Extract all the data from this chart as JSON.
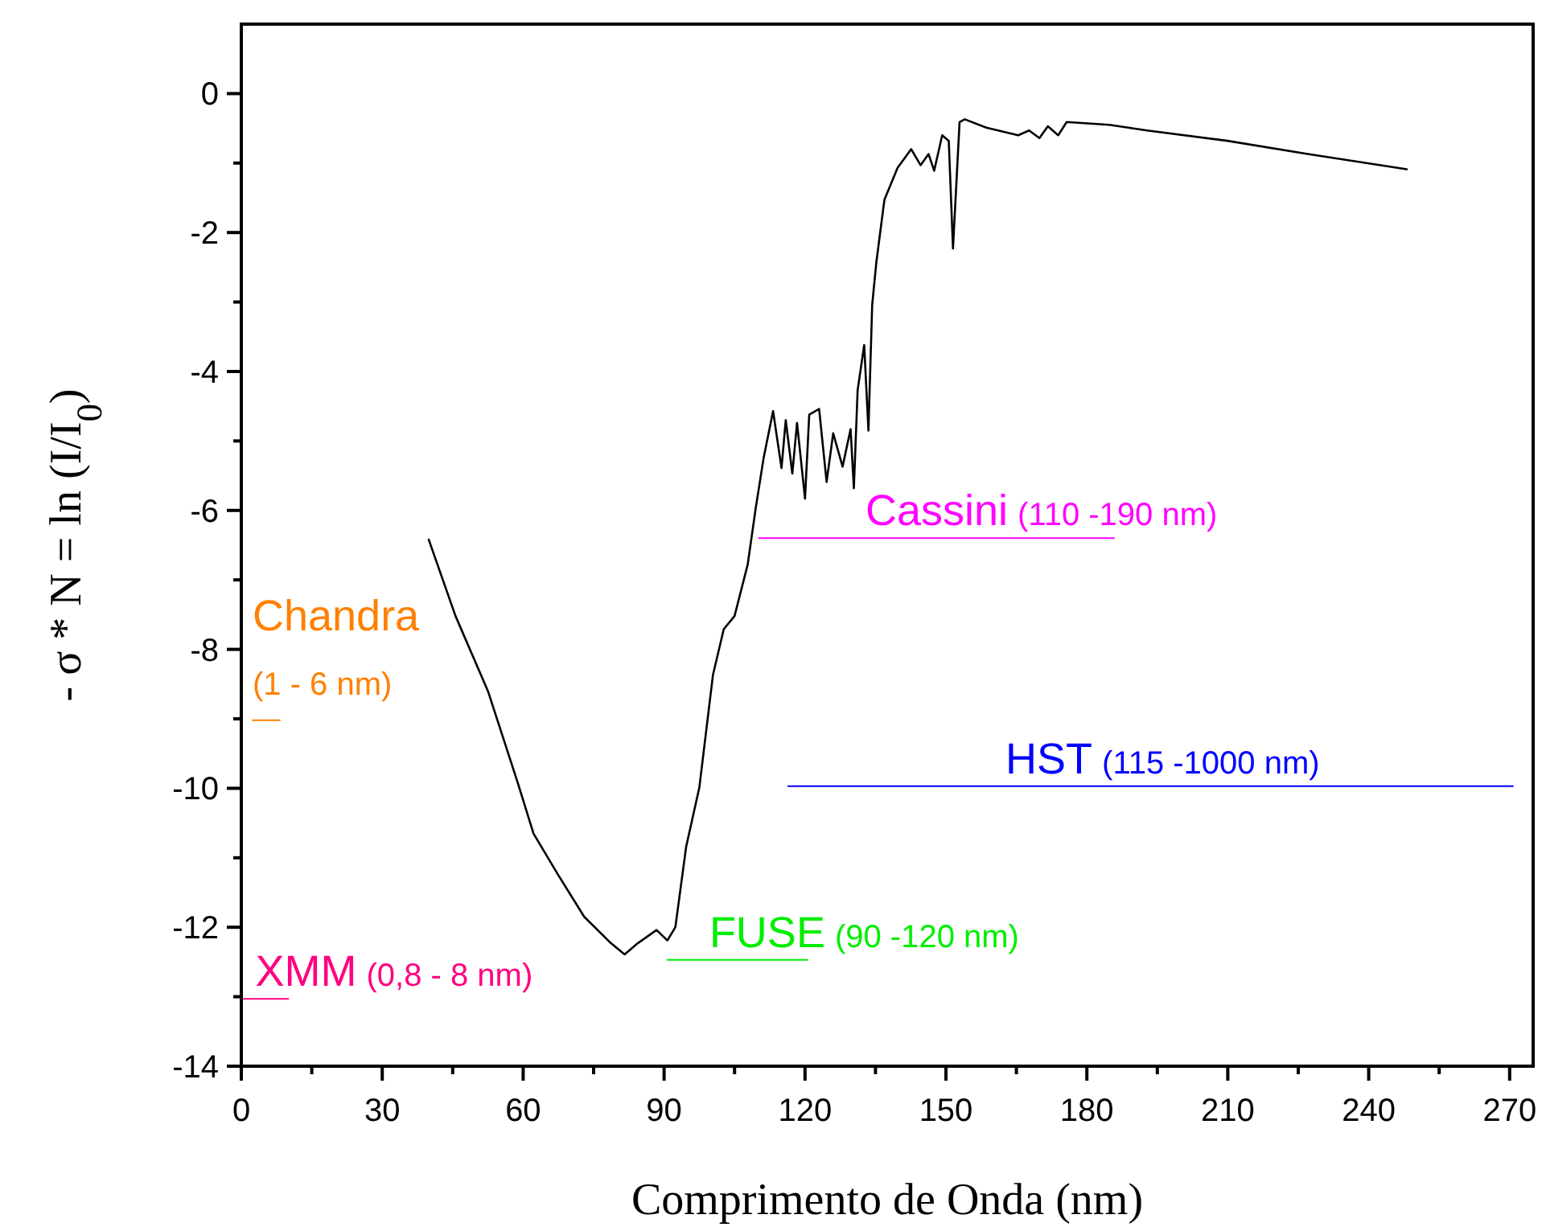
{
  "chart_data": {
    "type": "line",
    "xlabel": "Comprimento de Onda (nm)",
    "ylabel": "- σ * N = ln (I/I$_{0}$)",
    "xlim": [
      0,
      275
    ],
    "ylim": [
      -14,
      1
    ],
    "xticks": [
      0,
      {
        "value": 15,
        "label": null
      },
      30,
      {
        "value": 45,
        "label": null
      },
      60,
      {
        "value": 75,
        "label": null
      },
      90,
      {
        "value": 105,
        "label": null
      },
      120,
      {
        "value": 135,
        "label": null
      },
      150,
      {
        "value": 165,
        "label": null
      },
      180,
      {
        "value": 195,
        "label": null
      },
      210,
      {
        "value": 225,
        "label": null
      },
      240,
      {
        "value": 255,
        "label": null
      },
      270
    ],
    "yticks": [
      -14,
      {
        "value": -13,
        "label": null
      },
      -12,
      {
        "value": -11,
        "label": null
      },
      -10,
      {
        "value": -9,
        "label": null
      },
      -8,
      {
        "value": -7,
        "label": null
      },
      -6,
      {
        "value": -5,
        "label": null
      },
      -4,
      {
        "value": -3,
        "label": null
      },
      -2,
      {
        "value": -1,
        "label": null
      },
      0
    ],
    "grid": false,
    "legend": false,
    "marker": "none",
    "line_style": "solid",
    "series": [
      {
        "color": "#000000",
        "x": [
          39.9,
          45.6,
          52.5,
          58.8,
          62.2,
          67.3,
          73.0,
          78.7,
          81.6,
          84.4,
          88.4,
          90.7,
          92.4,
          94.7,
          97.5,
          100.4,
          102.7,
          105.0,
          107.8,
          109.5,
          111.2,
          113.2,
          115.0,
          115.9,
          117.3,
          118.3,
          120.0,
          120.9,
          123.0,
          124.6,
          126.0,
          128.0,
          129.7,
          130.4,
          131.2,
          132.6,
          133.5,
          134.3,
          135.2,
          136.9,
          139.7,
          142.6,
          144.6,
          146.3,
          147.5,
          149.2,
          150.6,
          151.5,
          152.9,
          154.0,
          158.6,
          165.4,
          167.7,
          169.9,
          171.7,
          173.9,
          175.7,
          184.8,
          192.8,
          209.9,
          227.0,
          248.1
        ],
        "values": [
          -6.42,
          -7.52,
          -8.6,
          -9.91,
          -10.65,
          -11.23,
          -11.85,
          -12.23,
          -12.39,
          -12.23,
          -12.04,
          -12.19,
          -12.0,
          -10.84,
          -9.99,
          -8.37,
          -7.71,
          -7.52,
          -6.78,
          -5.97,
          -5.24,
          -4.57,
          -5.39,
          -4.7,
          -5.47,
          -4.74,
          -5.83,
          -4.62,
          -4.54,
          -5.59,
          -4.89,
          -5.37,
          -4.83,
          -5.68,
          -4.27,
          -3.62,
          -4.85,
          -3.04,
          -2.42,
          -1.53,
          -1.07,
          -0.8,
          -1.03,
          -0.87,
          -1.11,
          -0.6,
          -0.68,
          -2.23,
          -0.41,
          -0.37,
          -0.49,
          -0.6,
          -0.53,
          -0.64,
          -0.47,
          -0.6,
          -0.41,
          -0.45,
          -0.53,
          -0.68,
          -0.87,
          -1.09
        ]
      },
      {
        "name": "Chandra",
        "color": "#ff8000",
        "x": [
          2.4,
          8.2
        ],
        "values": [
          -9.02,
          -9.02
        ]
      },
      {
        "name": "XMM",
        "color": "#ff0080",
        "x": [
          0,
          10
        ],
        "values": [
          -13.03,
          -13.03
        ]
      },
      {
        "name": "FUSE",
        "color": "#00ee00",
        "x": [
          90.7,
          120.5
        ],
        "values": [
          -12.47,
          -12.47
        ]
      },
      {
        "name": "Cassini",
        "color": "#ff00ff",
        "x": [
          110.2,
          185.8
        ],
        "values": [
          -6.4,
          -6.4
        ]
      },
      {
        "name": "HST",
        "color": "#0000ff",
        "x": [
          116.4,
          270.7
        ],
        "values": [
          -9.97,
          -9.97
        ]
      }
    ],
    "annotations": [
      "(1 - 6 nm)",
      "(0,8 - 8 nm)",
      "(90 -120 nm)",
      "(110 -190 nm)",
      "(115 -1000 nm)"
    ]
  }
}
